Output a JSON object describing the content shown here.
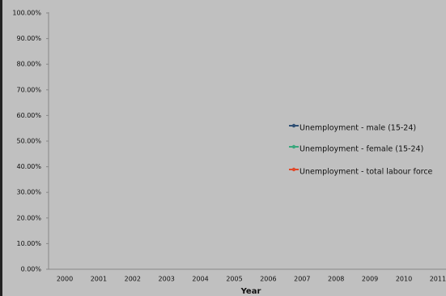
{
  "chart_data": {
    "type": "line",
    "categories": [
      "2000",
      "2001",
      "2002",
      "2003",
      "2004",
      "2005",
      "2006",
      "2007",
      "2008",
      "2009",
      "2010",
      "2011"
    ],
    "series": [
      {
        "name": "Unemployment - male (15-24)",
        "color": "#2f4f74",
        "values": [
          null,
          null,
          null,
          null,
          null,
          null,
          null,
          null,
          null,
          null,
          null,
          null
        ]
      },
      {
        "name": "Unemployment - female (15-24)",
        "color": "#3aa77c",
        "values": [
          null,
          null,
          null,
          null,
          null,
          null,
          null,
          null,
          null,
          null,
          null,
          null
        ]
      },
      {
        "name": "Unemployment - total labour force",
        "color": "#e0492a",
        "values": [
          null,
          null,
          null,
          null,
          null,
          null,
          null,
          null,
          null,
          null,
          null,
          null
        ]
      }
    ],
    "x_label": "Year",
    "ylim": [
      0,
      100
    ],
    "yticks": [
      {
        "value": 0,
        "label": "0.00%"
      },
      {
        "value": 10,
        "label": "10.00%"
      },
      {
        "value": 20,
        "label": "20.00%"
      },
      {
        "value": 30,
        "label": "30.00%"
      },
      {
        "value": 40,
        "label": "40.00%"
      },
      {
        "value": 50,
        "label": "50.00%"
      },
      {
        "value": 60,
        "label": "60.00%"
      },
      {
        "value": 70,
        "label": "70.00%"
      },
      {
        "value": 80,
        "label": "80.00%"
      },
      {
        "value": 90,
        "label": "90.00%"
      },
      {
        "value": 100,
        "label": "100.00%"
      }
    ],
    "grid": false
  }
}
